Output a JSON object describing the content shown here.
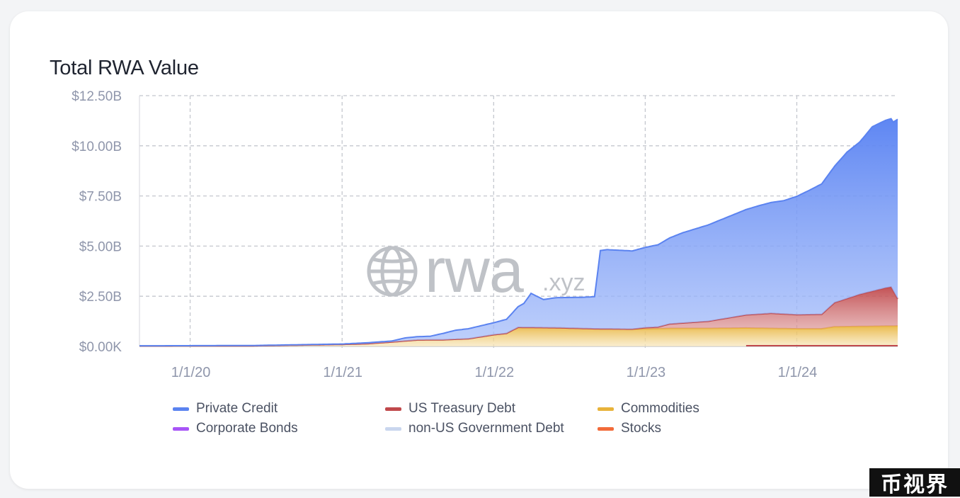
{
  "title": "Total RWA Value",
  "watermark": {
    "main": "rwa",
    "suffix": ".xyz"
  },
  "badge": "币视界",
  "chart_data": {
    "type": "area",
    "title": "Total RWA Value",
    "xlabel": "",
    "ylabel": "",
    "y_tick_labels": [
      "$0.00K",
      "$2.50B",
      "$5.00B",
      "$7.50B",
      "$10.00B",
      "$12.50B"
    ],
    "x_tick_labels": [
      "1/1/20",
      "1/1/21",
      "1/1/22",
      "1/1/23",
      "1/1/24"
    ],
    "ylim": [
      0,
      12.5
    ],
    "y_unit": "$B",
    "xlim": [
      "2019-09-01",
      "2024-08-31"
    ],
    "grid": true,
    "legend_position": "bottom",
    "stacked": true,
    "series": [
      {
        "name": "Commodities",
        "color": "#e8b33a",
        "points": [
          [
            "2019-09-01",
            0.02
          ],
          [
            "2020-06-01",
            0.03
          ],
          [
            "2021-01-01",
            0.1
          ],
          [
            "2021-03-01",
            0.13
          ],
          [
            "2021-05-01",
            0.22
          ],
          [
            "2021-07-01",
            0.32
          ],
          [
            "2021-09-01",
            0.33
          ],
          [
            "2021-11-01",
            0.38
          ],
          [
            "2022-01-01",
            0.58
          ],
          [
            "2022-02-01",
            0.65
          ],
          [
            "2022-03-01",
            0.95
          ],
          [
            "2022-06-01",
            0.93
          ],
          [
            "2022-09-01",
            0.88
          ],
          [
            "2022-12-01",
            0.86
          ],
          [
            "2023-03-01",
            0.9
          ],
          [
            "2023-06-01",
            0.9
          ],
          [
            "2023-09-01",
            0.92
          ],
          [
            "2024-01-01",
            0.88
          ],
          [
            "2024-03-01",
            0.88
          ],
          [
            "2024-04-01",
            0.98
          ],
          [
            "2024-08-31",
            1.02
          ]
        ]
      },
      {
        "name": "US Treasury Debt",
        "color": "#c0494c",
        "points": [
          [
            "2019-09-01",
            0
          ],
          [
            "2022-12-01",
            0
          ],
          [
            "2023-01-01",
            0.06
          ],
          [
            "2023-02-01",
            0.08
          ],
          [
            "2023-03-01",
            0.22
          ],
          [
            "2023-06-01",
            0.35
          ],
          [
            "2023-09-01",
            0.65
          ],
          [
            "2023-11-01",
            0.75
          ],
          [
            "2024-01-01",
            0.7
          ],
          [
            "2024-03-01",
            0.72
          ],
          [
            "2024-04-01",
            1.2
          ],
          [
            "2024-06-01",
            1.6
          ],
          [
            "2024-08-01",
            1.9
          ],
          [
            "2024-08-15",
            1.95
          ],
          [
            "2024-08-31",
            1.35
          ]
        ]
      },
      {
        "name": "Private Credit",
        "color": "#5b83f0",
        "points": [
          [
            "2019-09-01",
            0.01
          ],
          [
            "2021-01-01",
            0.02
          ],
          [
            "2021-03-01",
            0.05
          ],
          [
            "2021-05-01",
            0.05
          ],
          [
            "2021-06-01",
            0.15
          ],
          [
            "2021-08-01",
            0.18
          ],
          [
            "2021-10-01",
            0.45
          ],
          [
            "2021-12-01",
            0.55
          ],
          [
            "2022-01-01",
            0.6
          ],
          [
            "2022-02-01",
            0.7
          ],
          [
            "2022-03-15",
            1.2
          ],
          [
            "2022-04-01",
            1.7
          ],
          [
            "2022-05-01",
            1.4
          ],
          [
            "2022-06-01",
            1.5
          ],
          [
            "2022-08-01",
            1.55
          ],
          [
            "2022-09-01",
            1.6
          ],
          [
            "2022-09-15",
            3.9
          ],
          [
            "2022-10-01",
            3.95
          ],
          [
            "2022-12-01",
            3.9
          ],
          [
            "2023-02-01",
            4.1
          ],
          [
            "2023-04-01",
            4.5
          ],
          [
            "2023-06-01",
            4.8
          ],
          [
            "2023-08-01",
            5.1
          ],
          [
            "2023-10-01",
            5.4
          ],
          [
            "2023-12-01",
            5.65
          ],
          [
            "2024-01-01",
            5.9
          ],
          [
            "2024-02-01",
            6.2
          ],
          [
            "2024-03-01",
            6.5
          ],
          [
            "2024-04-01",
            6.8
          ],
          [
            "2024-05-01",
            7.3
          ],
          [
            "2024-06-01",
            7.6
          ],
          [
            "2024-07-01",
            8.2
          ],
          [
            "2024-08-01",
            8.35
          ],
          [
            "2024-08-20",
            8.4
          ],
          [
            "2024-08-31",
            8.95
          ]
        ]
      },
      {
        "name": "Stocks",
        "color": "#f26b3a",
        "points": [
          [
            "2023-09-01",
            0.02
          ],
          [
            "2024-08-31",
            0.02
          ]
        ]
      },
      {
        "name": "Corporate Bonds",
        "color": "#a855f7",
        "points": []
      },
      {
        "name": "non-US Government Debt",
        "color": "#c9d6ee",
        "points": []
      }
    ],
    "legend": [
      {
        "name": "Private Credit",
        "color": "#5b83f0"
      },
      {
        "name": "US Treasury Debt",
        "color": "#c0494c"
      },
      {
        "name": "Commodities",
        "color": "#e8b33a"
      },
      {
        "name": "Corporate Bonds",
        "color": "#a855f7"
      },
      {
        "name": "non-US Government Debt",
        "color": "#c9d6ee"
      },
      {
        "name": "Stocks",
        "color": "#f26b3a"
      }
    ]
  }
}
